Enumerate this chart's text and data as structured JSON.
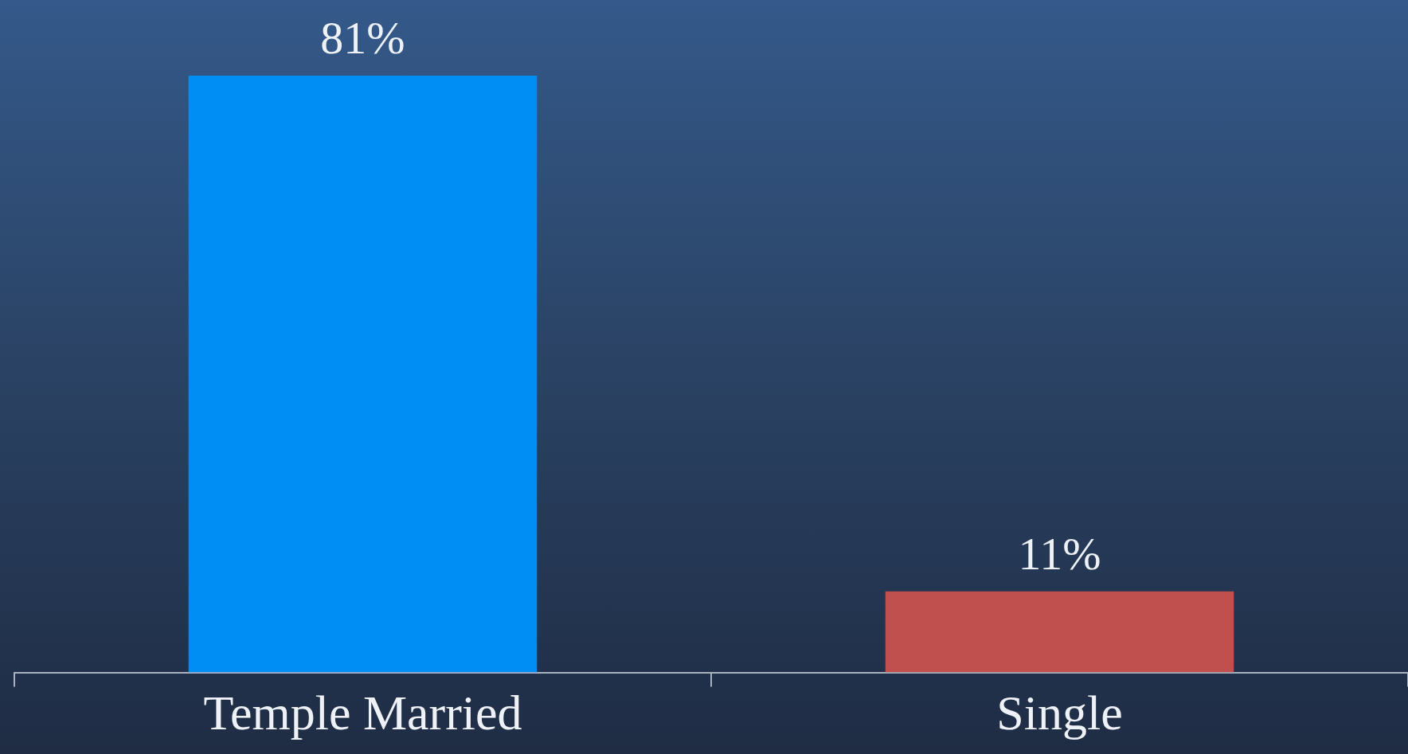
{
  "chart_data": {
    "type": "bar",
    "categories": [
      "Temple Married",
      "Single"
    ],
    "values": [
      81,
      11
    ],
    "colors": [
      "#008ef5",
      "#c0504d"
    ],
    "value_labels": [
      "81%",
      "11%"
    ]
  }
}
